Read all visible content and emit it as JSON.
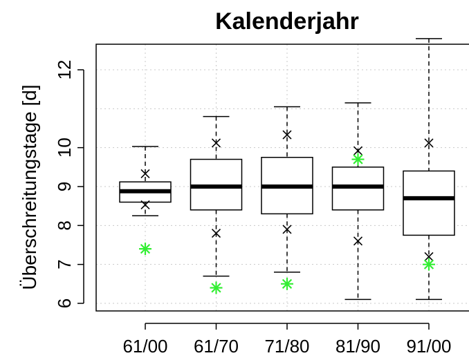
{
  "chart_data": {
    "type": "boxplot",
    "title": "Kalenderjahr",
    "xlabel": "",
    "ylabel": "Überschreitungstage [d]",
    "ylim": [
      5.8,
      13.3
    ],
    "yticks": [
      6,
      7,
      8,
      9,
      10,
      12
    ],
    "grid": true,
    "categories": [
      "61/00",
      "61/70",
      "71/80",
      "81/90",
      "91/00"
    ],
    "boxes": [
      {
        "category": "61/00",
        "whisker_low": 8.25,
        "q1": 8.6,
        "median": 8.88,
        "q3": 9.12,
        "whisker_high": 10.03
      },
      {
        "category": "61/70",
        "whisker_low": 6.7,
        "q1": 8.4,
        "median": 9.0,
        "q3": 9.7,
        "whisker_high": 10.8
      },
      {
        "category": "71/80",
        "whisker_low": 6.8,
        "q1": 8.3,
        "median": 9.0,
        "q3": 9.75,
        "whisker_high": 11.05
      },
      {
        "category": "81/90",
        "whisker_low": 6.1,
        "q1": 8.4,
        "median": 9.0,
        "q3": 9.5,
        "whisker_high": 11.15
      },
      {
        "category": "91/00",
        "whisker_low": 6.1,
        "q1": 7.75,
        "median": 8.7,
        "q3": 9.4,
        "whisker_high": 12.8
      }
    ],
    "x_markers": [
      {
        "category": "61/00",
        "values": [
          9.33,
          8.53
        ]
      },
      {
        "category": "61/70",
        "values": [
          10.12,
          7.8
        ]
      },
      {
        "category": "71/80",
        "values": [
          10.33,
          7.9
        ]
      },
      {
        "category": "81/90",
        "values": [
          9.92,
          7.6
        ]
      },
      {
        "category": "91/00",
        "values": [
          10.12,
          7.2
        ]
      }
    ],
    "green_markers": [
      {
        "category": "61/00",
        "value": 7.4
      },
      {
        "category": "61/70",
        "value": 6.4
      },
      {
        "category": "71/80",
        "value": 6.5
      },
      {
        "category": "81/90",
        "value": 9.7
      },
      {
        "category": "91/00",
        "value": 7.0
      }
    ],
    "colors": {
      "box_outline": "#000000",
      "green_marker": "#33ee33"
    }
  }
}
